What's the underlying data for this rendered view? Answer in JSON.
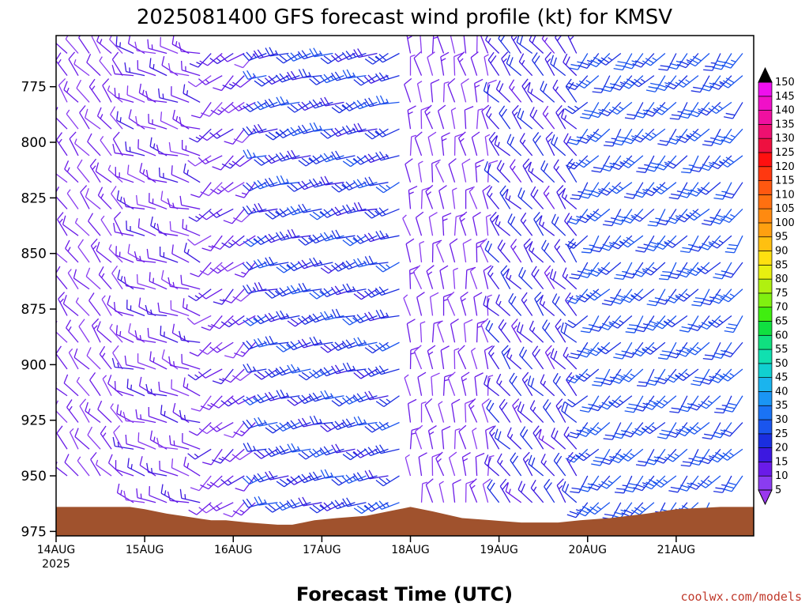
{
  "chart_data": {
    "type": "wind-barb-profile",
    "title": "2025081400 GFS forecast wind profile (kt) for KMSV",
    "xlabel": "Forecast Time (UTC)",
    "credit": "coolwx.com/models",
    "x_ticks": [
      {
        "label": "14AUG",
        "sublabel": "2025",
        "hour": 0
      },
      {
        "label": "15AUG",
        "hour": 24
      },
      {
        "label": "16AUG",
        "hour": 48
      },
      {
        "label": "17AUG",
        "hour": 72
      },
      {
        "label": "18AUG",
        "hour": 96
      },
      {
        "label": "19AUG",
        "hour": 120
      },
      {
        "label": "20AUG",
        "hour": 144
      },
      {
        "label": "21AUG",
        "hour": 168
      }
    ],
    "xlim_hours": [
      0,
      189
    ],
    "y_ticks": [
      775,
      800,
      825,
      850,
      875,
      900,
      925,
      950,
      975
    ],
    "ylim_hpa": [
      752,
      977
    ],
    "y_inverted": true,
    "colorbar": {
      "labels": [
        5,
        10,
        15,
        20,
        25,
        30,
        35,
        40,
        45,
        50,
        55,
        60,
        65,
        70,
        75,
        80,
        85,
        90,
        95,
        100,
        105,
        110,
        115,
        120,
        125,
        130,
        135,
        140,
        145,
        150
      ],
      "colors": [
        "#8a3cf0",
        "#6a1be8",
        "#3c18e0",
        "#1a2ee0",
        "#1a55ee",
        "#1a73f5",
        "#1a95f5",
        "#1ab4ee",
        "#10d0d0",
        "#10e0b0",
        "#10e080",
        "#10e040",
        "#40ee10",
        "#80f010",
        "#b0f010",
        "#e8f010",
        "#ffe010",
        "#ffc010",
        "#ffa010",
        "#ff8a10",
        "#ff7010",
        "#ff5810",
        "#ff3810",
        "#ff1010",
        "#ee1040",
        "#ee1070",
        "#f010a0",
        "#f010c8",
        "#ee10ee"
      ],
      "arrow_top_color": "#000000",
      "arrow_bottom_color": "#9a38ee"
    },
    "terrain": {
      "color": "#a0522d",
      "surface_pressure_points": [
        {
          "hour": 0,
          "hpa": 964
        },
        {
          "hour": 20,
          "hpa": 964
        },
        {
          "hour": 24,
          "hpa": 965
        },
        {
          "hour": 30,
          "hpa": 967
        },
        {
          "hour": 34,
          "hpa": 968
        },
        {
          "hour": 38,
          "hpa": 969
        },
        {
          "hour": 42,
          "hpa": 970
        },
        {
          "hour": 46,
          "hpa": 970
        },
        {
          "hour": 52,
          "hpa": 971
        },
        {
          "hour": 60,
          "hpa": 972
        },
        {
          "hour": 64,
          "hpa": 972
        },
        {
          "hour": 70,
          "hpa": 970
        },
        {
          "hour": 76,
          "hpa": 969
        },
        {
          "hour": 84,
          "hpa": 968
        },
        {
          "hour": 90,
          "hpa": 966
        },
        {
          "hour": 96,
          "hpa": 964
        },
        {
          "hour": 102,
          "hpa": 966
        },
        {
          "hour": 110,
          "hpa": 969
        },
        {
          "hour": 118,
          "hpa": 970
        },
        {
          "hour": 126,
          "hpa": 971
        },
        {
          "hour": 136,
          "hpa": 971
        },
        {
          "hour": 142,
          "hpa": 970
        },
        {
          "hour": 150,
          "hpa": 969
        },
        {
          "hour": 160,
          "hpa": 967
        },
        {
          "hour": 168,
          "hpa": 965
        },
        {
          "hour": 180,
          "hpa": 964
        },
        {
          "hour": 189,
          "hpa": 964
        }
      ]
    },
    "barb_levels_hpa": [
      760,
      770,
      782,
      794,
      806,
      818,
      830,
      842,
      854,
      866,
      878,
      890,
      902,
      914,
      926,
      938,
      950,
      962
    ],
    "barb_times_hours": [
      0,
      3,
      6,
      9,
      12,
      15,
      18,
      21,
      24,
      27,
      30,
      33,
      36,
      39,
      42,
      45,
      48,
      51,
      54,
      57,
      60,
      63,
      66,
      69,
      72,
      75,
      78,
      81,
      84,
      87,
      90,
      93,
      96,
      99,
      102,
      105,
      108,
      111,
      114,
      117,
      120,
      123,
      126,
      129,
      132,
      135,
      138,
      141,
      144,
      147,
      150,
      153,
      156,
      159,
      162,
      165,
      168,
      171,
      174,
      177,
      180,
      183,
      186
    ],
    "wind_regimes": [
      {
        "from_hour": 0,
        "to_hour": 21,
        "direction_deg": 320,
        "speed_kt": 10
      },
      {
        "from_hour": 21,
        "to_hour": 42,
        "direction_deg": 290,
        "speed_kt": 12
      },
      {
        "from_hour": 42,
        "to_hour": 57,
        "direction_deg": 230,
        "speed_kt": 12
      },
      {
        "from_hour": 57,
        "to_hour": 96,
        "direction_deg": 250,
        "speed_kt": 22
      },
      {
        "from_hour": 96,
        "to_hour": 120,
        "direction_deg": 350,
        "speed_kt": 10
      },
      {
        "from_hour": 120,
        "to_hour": 144,
        "direction_deg": 320,
        "speed_kt": 18
      },
      {
        "from_hour": 144,
        "to_hour": 189,
        "direction_deg": 220,
        "speed_kt": 25
      }
    ]
  }
}
